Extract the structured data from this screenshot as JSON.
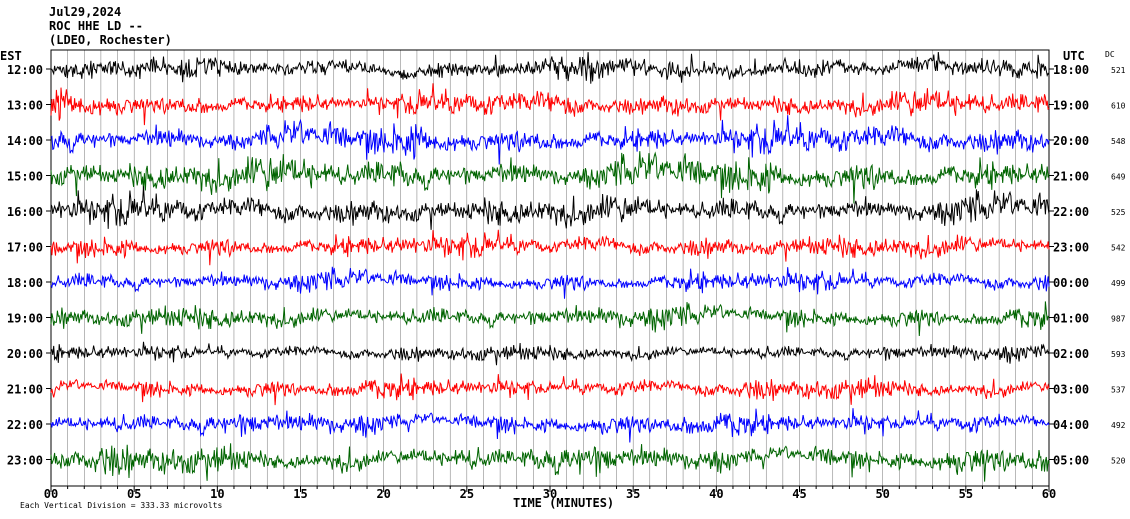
{
  "header": {
    "date": "Jul29,2024",
    "station": "ROC HHE LD --",
    "location": "(LDEO, Rochester)"
  },
  "left_axis_title": "EST",
  "right_axis_title": "UTC",
  "dc_title": "DC",
  "xlabel": "TIME (MINUTES)",
  "footer": "Each Vertical Division =  333.33 microvolts",
  "chart_data": {
    "type": "line",
    "xlim": [
      0,
      60
    ],
    "x_ticks": [
      "00",
      "05",
      "10",
      "15",
      "20",
      "25",
      "30",
      "35",
      "40",
      "45",
      "50",
      "55",
      "60"
    ],
    "rows": [
      {
        "est": "12:00",
        "utc": "18:00",
        "dc": "521",
        "color": "#000000",
        "amp": 1.0
      },
      {
        "est": "13:00",
        "utc": "19:00",
        "dc": "610",
        "color": "#ff0000",
        "amp": 1.1
      },
      {
        "est": "14:00",
        "utc": "20:00",
        "dc": "548",
        "color": "#0000ff",
        "amp": 1.3
      },
      {
        "est": "15:00",
        "utc": "21:00",
        "dc": "649",
        "color": "#006400",
        "amp": 1.5
      },
      {
        "est": "16:00",
        "utc": "22:00",
        "dc": "525",
        "color": "#000000",
        "amp": 1.3
      },
      {
        "est": "17:00",
        "utc": "23:00",
        "dc": "542",
        "color": "#ff0000",
        "amp": 1.0
      },
      {
        "est": "18:00",
        "utc": "00:00",
        "dc": "499",
        "color": "#0000ff",
        "amp": 0.9
      },
      {
        "est": "19:00",
        "utc": "01:00",
        "dc": "987",
        "color": "#006400",
        "amp": 1.0
      },
      {
        "est": "20:00",
        "utc": "02:00",
        "dc": "593",
        "color": "#000000",
        "amp": 0.7
      },
      {
        "est": "21:00",
        "utc": "03:00",
        "dc": "537",
        "color": "#ff0000",
        "amp": 0.9
      },
      {
        "est": "22:00",
        "utc": "04:00",
        "dc": "492",
        "color": "#0000ff",
        "amp": 1.0
      },
      {
        "est": "23:00",
        "utc": "05:00",
        "dc": "520",
        "color": "#006400",
        "amp": 1.2
      }
    ]
  }
}
